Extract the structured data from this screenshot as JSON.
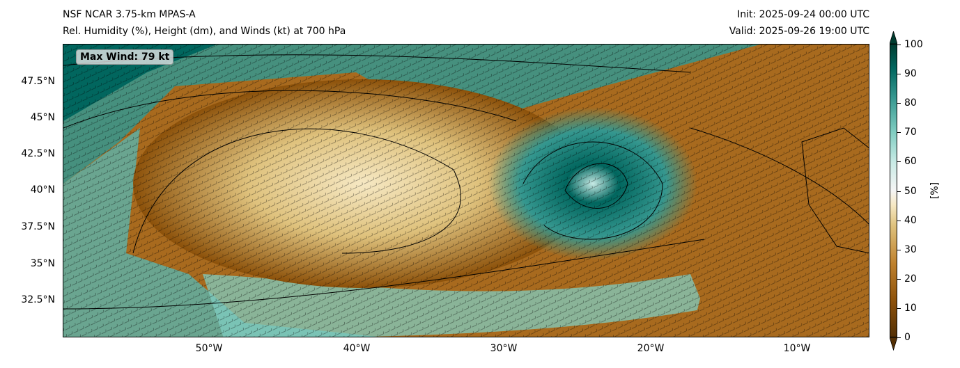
{
  "header": {
    "title_line1": "NSF NCAR 3.75-km MPAS-A",
    "title_line2": "Rel. Humidity (%), Height (dm), and Winds (kt) at 700 hPa",
    "init": "Init: 2025-09-24 00:00 UTC",
    "valid": "Valid: 2025-09-26 19:00 UTC"
  },
  "map": {
    "max_wind_label": "Max Wind: 79 kt",
    "lat_labels": [
      "47.5°N",
      "45°N",
      "42.5°N",
      "40°N",
      "37.5°N",
      "35°N",
      "32.5°N"
    ],
    "lon_labels": [
      "50°W",
      "40°W",
      "30°W",
      "20°W",
      "10°W"
    ]
  },
  "colorbar": {
    "unit": "[%]",
    "ticks": [
      "100",
      "90",
      "80",
      "70",
      "60",
      "50",
      "40",
      "30",
      "20",
      "10",
      "0"
    ],
    "colors": {
      "low": "#543005",
      "mid": "#f5f5f5",
      "high": "#003c30"
    }
  }
}
